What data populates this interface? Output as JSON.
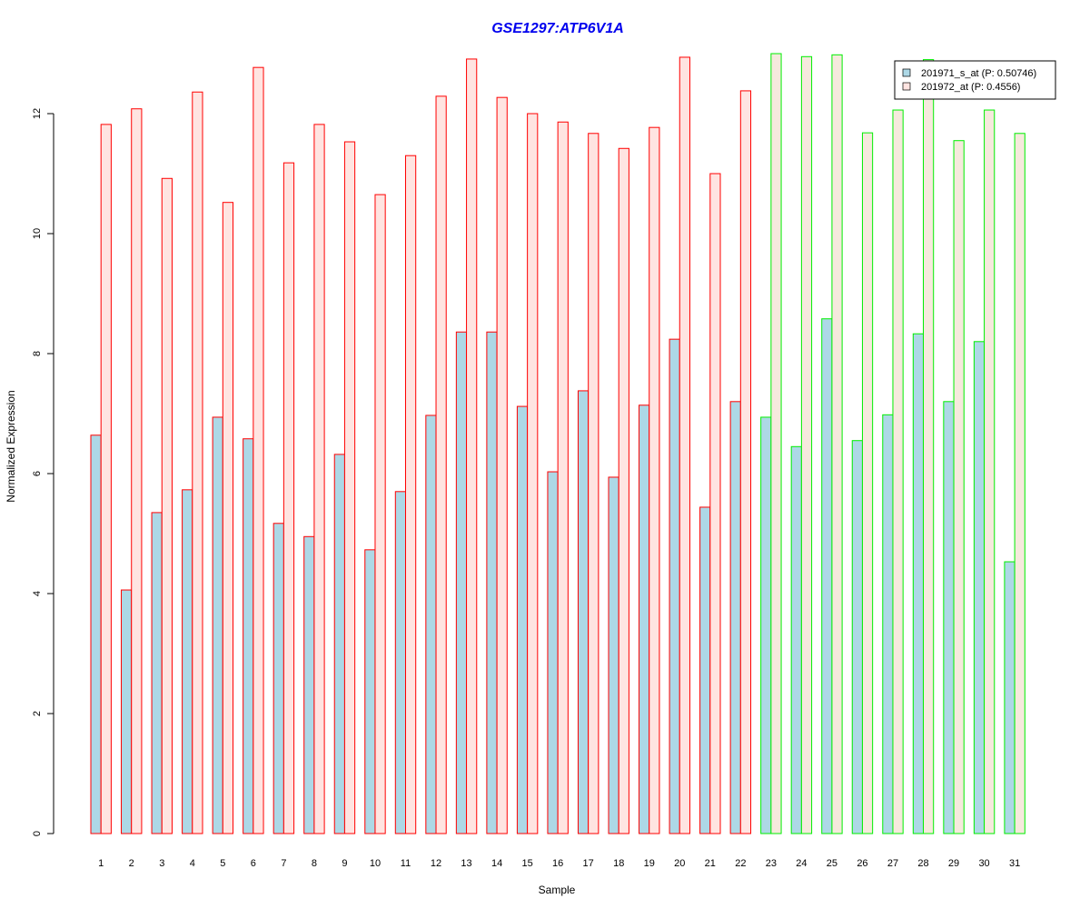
{
  "chart_data": {
    "type": "bar",
    "title": "GSE1297:ATP6V1A",
    "xlabel": "Sample",
    "ylabel": "Normalized Expression",
    "ylim": [
      0,
      13
    ],
    "yticks": [
      "0",
      "2",
      "4",
      "6",
      "8",
      "10",
      "12"
    ],
    "categories": [
      "1",
      "2",
      "3",
      "4",
      "5",
      "6",
      "7",
      "8",
      "9",
      "10",
      "11",
      "12",
      "13",
      "14",
      "15",
      "16",
      "17",
      "18",
      "19",
      "20",
      "21",
      "22",
      "23",
      "24",
      "25",
      "26",
      "27",
      "28",
      "29",
      "30",
      "31"
    ],
    "group_a_samples": 22,
    "series": [
      {
        "name": "201971_s_at (P: 0.50746)",
        "color": "#add8e6",
        "values": [
          6.64,
          4.06,
          5.35,
          5.73,
          6.94,
          6.58,
          5.17,
          4.95,
          6.32,
          4.73,
          5.7,
          6.97,
          8.36,
          8.36,
          7.12,
          6.03,
          7.38,
          5.94,
          7.14,
          8.24,
          5.44,
          7.2,
          6.94,
          6.45,
          8.58,
          6.55,
          6.98,
          8.33,
          7.2,
          8.2,
          4.53
        ]
      },
      {
        "name": "201972_at (P: 0.4556)",
        "color": "#ffe4e1",
        "values": [
          11.82,
          12.08,
          10.92,
          12.36,
          10.52,
          12.77,
          11.18,
          11.82,
          11.53,
          10.65,
          11.3,
          12.29,
          12.91,
          12.27,
          12.0,
          11.86,
          11.67,
          11.42,
          11.77,
          12.94,
          11.0,
          12.38,
          13.0,
          12.95,
          12.98,
          11.68,
          12.06,
          12.9,
          11.55,
          12.06,
          11.67
        ]
      }
    ],
    "border_colors": {
      "group_a": "#ff0000",
      "group_b": "#00ee00"
    },
    "group_b_fill_b": "#f6e9dd",
    "legend": "top-right",
    "grid": false
  }
}
